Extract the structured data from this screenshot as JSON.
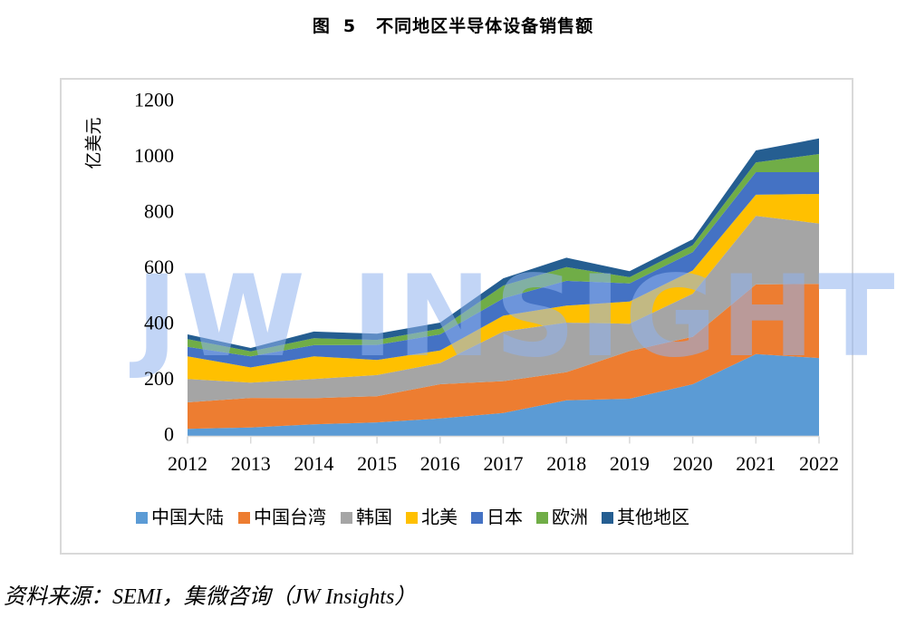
{
  "figure": {
    "label": "图",
    "number": "5",
    "title": "不同地区半导体设备销售额"
  },
  "source_note": "资料来源：SEMI，集微咨询（JW Insights）",
  "watermark": "JW INSIGHTS",
  "chart_data": {
    "type": "area",
    "stacked": true,
    "title": "不同地区半导体设备销售额",
    "xlabel": "",
    "ylabel": "亿美元",
    "ylim": [
      0,
      1200
    ],
    "yticks": [
      0,
      200,
      400,
      600,
      800,
      1000,
      1200
    ],
    "grid": false,
    "legend_position": "bottom",
    "x": [
      "2012",
      "2013",
      "2014",
      "2015",
      "2016",
      "2017",
      "2018",
      "2019",
      "2020",
      "2021",
      "2022"
    ],
    "series": [
      {
        "name": "中国大陆",
        "color": "#5b9bd5",
        "values": [
          27,
          32,
          43,
          50,
          64,
          84,
          129,
          135,
          187,
          295,
          281
        ]
      },
      {
        "name": "中国台湾",
        "color": "#ed7d31",
        "values": [
          95,
          106,
          94,
          94,
          123,
          114,
          101,
          171,
          170,
          250,
          266
        ]
      },
      {
        "name": "韩国",
        "color": "#a5a5a5",
        "values": [
          84,
          55,
          69,
          76,
          76,
          178,
          178,
          98,
          155,
          246,
          217
        ]
      },
      {
        "name": "北美",
        "color": "#ffc000",
        "values": [
          81,
          54,
          81,
          54,
          45,
          57,
          61,
          80,
          83,
          76,
          106
        ]
      },
      {
        "name": "日本",
        "color": "#4472c4",
        "values": [
          34,
          40,
          40,
          54,
          58,
          62,
          89,
          65,
          66,
          81,
          78
        ]
      },
      {
        "name": "欧洲",
        "color": "#70ad47",
        "values": [
          28,
          18,
          25,
          18,
          20,
          46,
          49,
          22,
          25,
          35,
          65
        ]
      },
      {
        "name": "其他地区",
        "color": "#255e91",
        "values": [
          17,
          12,
          24,
          22,
          22,
          26,
          34,
          22,
          21,
          43,
          56
        ]
      }
    ]
  }
}
